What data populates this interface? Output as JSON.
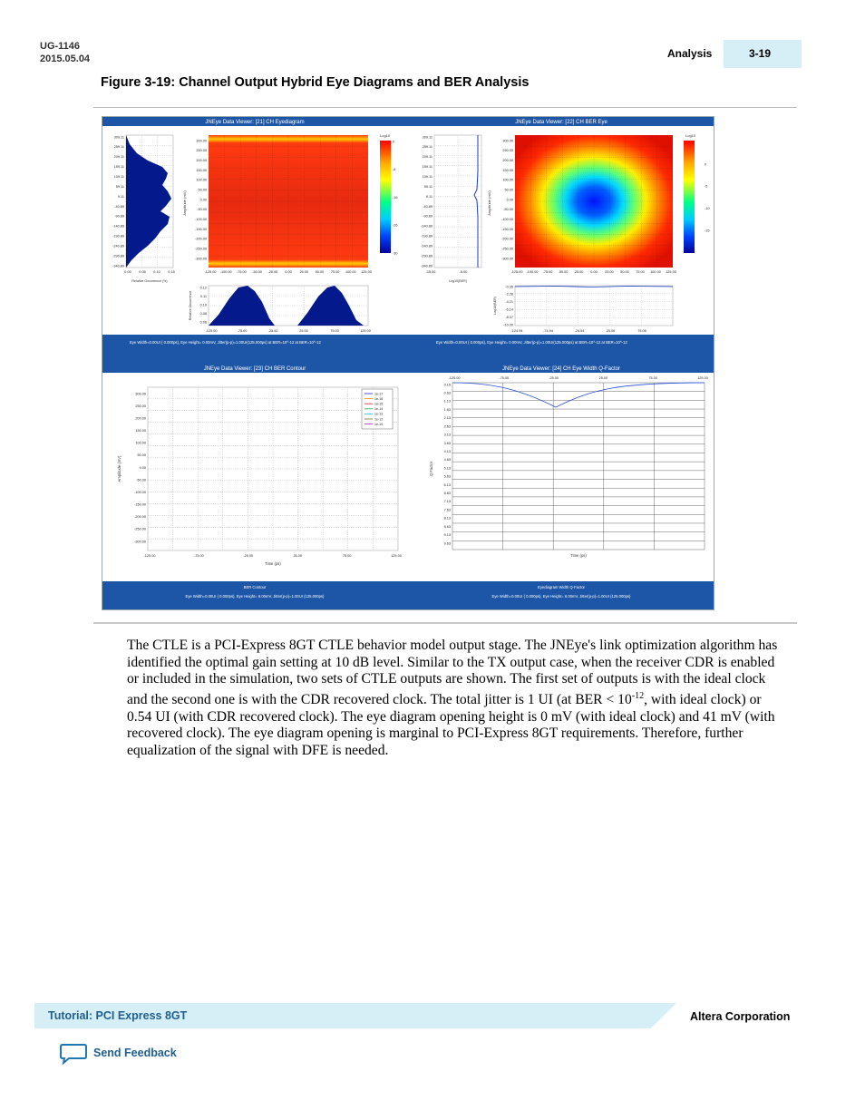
{
  "header": {
    "doc_id": "UG-1146",
    "doc_date": "2015.05.04",
    "section": "Analysis",
    "page_number": "3-19"
  },
  "figure": {
    "title": "Figure 3-19: Channel Output Hybrid Eye Diagrams and BER Analysis",
    "panels": {
      "eyediagram": {
        "title": "JNEye Data Viewer: [21] CH Eyediagram",
        "hist_y_ticks": [
          "309.11",
          "259.11",
          "209.11",
          "159.11",
          "109.11",
          "59.11",
          "9.11",
          "-40.89",
          "-90.89",
          "-140.89",
          "-190.89",
          "-240.89",
          "-290.89",
          "-340.89"
        ],
        "hist_x_ticks": [
          "0.00",
          "0.05",
          "0.10",
          "0.15"
        ],
        "hist_xlabel": "Relative Occurrence (%)",
        "y_ticks": [
          "300.00",
          "250.00",
          "200.00",
          "150.00",
          "100.00",
          "50.00",
          "0.00",
          "-50.00",
          "-100.00",
          "-150.00",
          "-200.00",
          "-250.00",
          "-300.00"
        ],
        "ylabel": "Amplitude (mV)",
        "x_ticks": [
          "-125.00",
          "-100.00",
          "-75.00",
          "-50.00",
          "-25.00",
          "0.00",
          "25.00",
          "50.00",
          "75.00",
          "100.00",
          "125.00"
        ],
        "colorbar_title": "Log10",
        "colorbar_ticks": [
          "0",
          "-8",
          "-16",
          "-26",
          "-30"
        ],
        "jitter_y_ticks": [
          "0.12",
          "0.11",
          "0.10",
          "0.08",
          "0.06"
        ],
        "jitter_ylabel": "Relative Occurrence",
        "jitter_x_ticks": [
          "-125.00",
          "-75.00",
          "-25.00",
          "25.00",
          "75.00",
          "125.00"
        ],
        "status": "Eye Width=0.00UI ( 0.000ps), Eye Height= 0.00mV, Jitter(p-p)=1.00UI(125.000ps) at BER=10^-12 at BER=10^-12"
      },
      "ber_eye": {
        "title": "JNEye Data Viewer: [22] CH BER Eye",
        "bathtub_y_ticks": [
          "309.11",
          "259.11",
          "209.11",
          "159.11",
          "109.11",
          "59.11",
          "9.11",
          "-40.89",
          "-90.89",
          "-140.89",
          "-190.89",
          "-240.89",
          "-290.89",
          "-340.89"
        ],
        "bathtub_x_ticks": [
          "-15.00",
          "-5.00"
        ],
        "bathtub_xlabel": "Log10(BER)",
        "y_ticks": [
          "300.00",
          "250.00",
          "200.00",
          "150.00",
          "100.00",
          "50.00",
          "0.00",
          "-50.00",
          "-100.00",
          "-150.00",
          "-200.00",
          "-250.00",
          "-300.00"
        ],
        "ylabel": "Amplitude (mV)",
        "x_ticks": [
          "-125.00",
          "-100.00",
          "-75.00",
          "-50.00",
          "-25.00",
          "0.00",
          "25.00",
          "50.00",
          "75.00",
          "100.00",
          "125.00"
        ],
        "colorbar_title": "Log10",
        "colorbar_ticks": [
          "0",
          "-5",
          "-10",
          "-15"
        ],
        "ber_y_ticks": [
          "-0.35",
          "-2.28",
          "-4.21",
          "-6.14",
          "-8.07",
          "-10.00"
        ],
        "ber_ylabel": "Log10(BER)",
        "ber_x_ticks": [
          "-124.94",
          "-74.94",
          "-24.94",
          "25.06",
          "75.06"
        ],
        "status": "Eye Width=0.00UI ( 0.000ps), Eye Height= 0.00mV, Jitter(p-p)=1.00UI(125.000ps) at BER=10^-12 at BER=10^-12"
      },
      "ber_contour": {
        "title": "JNEye Data Viewer: [23] CH BER Contour",
        "y_ticks": [
          "300.00",
          "250.00",
          "200.00",
          "150.00",
          "100.00",
          "50.00",
          "0.00",
          "-50.00",
          "-100.00",
          "-150.00",
          "-200.00",
          "-250.00",
          "-300.00"
        ],
        "ylabel": "Amplitude (mV)",
        "x_ticks": [
          "-125.00",
          "-75.00",
          "-25.00",
          "25.00",
          "75.00",
          "125.00"
        ],
        "xlabel": "Time (ps)",
        "legend": [
          {
            "label": "1e-17",
            "color": "#2222cc"
          },
          {
            "label": "1e-16",
            "color": "#ff8800"
          },
          {
            "label": "1e-15",
            "color": "#dd2222"
          },
          {
            "label": "1e-14",
            "color": "#22aa44"
          },
          {
            "label": "1e-13",
            "color": "#22bbdd"
          },
          {
            "label": "1e-12",
            "color": "#886644"
          },
          {
            "label": "1e-10",
            "color": "#aa22cc"
          }
        ],
        "status_title": "BER Contour",
        "status": "Eye Width=0.00UI ( 0.000ps), Eye Height= 6.00mV, Jitter(p-p)=1.00UI (125.000ps)"
      },
      "q_factor": {
        "title": "JNEye Data Viewer: [24] CH Eye Width Q-Factor",
        "x_ticks": [
          "-125.00",
          "-75.00",
          "-25.00",
          "25.00",
          "75.00",
          "125.00"
        ],
        "y_ticks": [
          "0.15",
          "0.63",
          "1.13",
          "1.63",
          "2.13",
          "2.63",
          "3.13",
          "3.63",
          "4.13",
          "4.63",
          "5.13",
          "5.63",
          "6.13",
          "6.63",
          "7.13",
          "7.63",
          "8.13",
          "8.63",
          "9.13",
          "9.63"
        ],
        "ylabel": "Q Factor",
        "xlabel": "Time (ps)",
        "status_title": "Eyediagram Width Q-Factor",
        "status": "Eye Width=0.00UI ( 0.000ps), Eye Height= 6.00mV, Jitter(p-p)=1.00UI (125.000ps)"
      }
    }
  },
  "body": {
    "part1": "The CTLE is a PCI-Express 8GT CTLE behavior model output stage. The JNEye's link optimization algorithm has identified the optimal gain setting at 10 dB level. Similar to the TX output case, when the receiver CDR is enabled or included in the simulation, two sets of CTLE outputs are shown. The first set of outputs is with the ideal clock and the second one is with the CDR recovered clock. The total jitter is 1 UI (at BER < 10",
    "exponent": "-12",
    "part2": ", with ideal clock) or 0.54 UI (with CDR recovered clock). The eye diagram opening height is 0 mV (with ideal clock) and 41 mV (with recovered clock). The eye diagram opening is marginal to PCI-Express 8GT requirements. Therefore, further equalization of the signal with DFE is needed."
  },
  "footer": {
    "doc_title": "Tutorial: PCI Express 8GT",
    "company": "Altera Corporation",
    "feedback": "Send Feedback"
  }
}
